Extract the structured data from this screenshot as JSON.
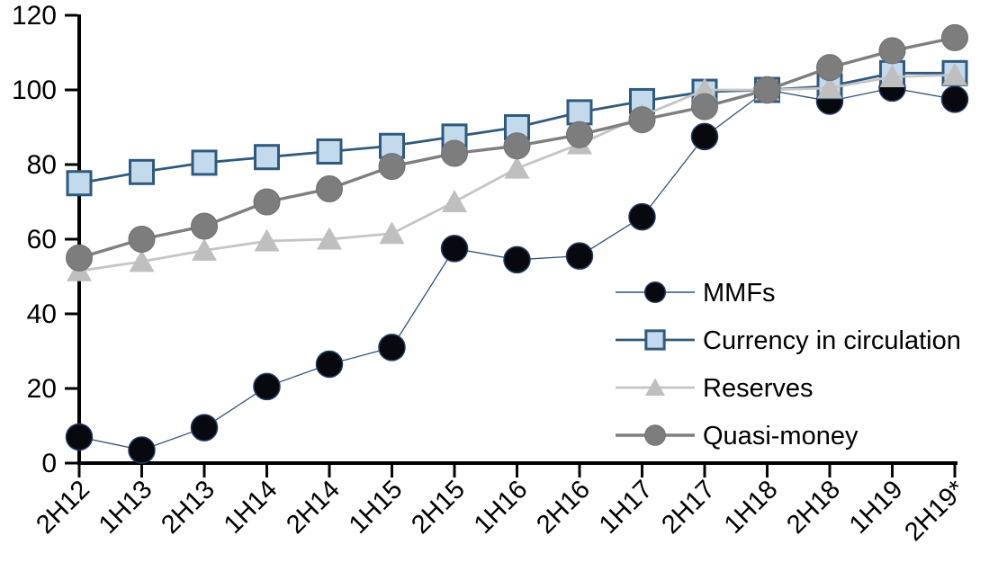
{
  "chart_data": {
    "type": "line",
    "title": "",
    "xlabel": "",
    "ylabel": "",
    "categories": [
      "2H12",
      "1H13",
      "2H13",
      "1H14",
      "2H14",
      "1H15",
      "2H15",
      "1H16",
      "2H16",
      "1H17",
      "2H17",
      "1H18",
      "2H18",
      "1H19",
      "2H19*"
    ],
    "series": [
      {
        "name": "MMFs",
        "marker": "circle",
        "marker_fill": "#07090F",
        "marker_stroke": "#223A62",
        "marker_stroke_width": 1.5,
        "marker_size": 29,
        "line_color": "#32527B",
        "line_width": 1.3,
        "values": [
          7,
          3.5,
          9.5,
          20.5,
          26.5,
          31,
          57.5,
          54.5,
          55.5,
          66,
          87.5,
          100,
          97,
          100.5,
          97.5
        ]
      },
      {
        "name": "Currency in circulation",
        "marker": "square",
        "marker_fill": "#C3D9EC",
        "marker_stroke": "#2F5A7E",
        "marker_stroke_width": 3,
        "marker_size": 26,
        "line_color": "#2F5A7E",
        "line_width": 2.8,
        "values": [
          75,
          78,
          80.5,
          82,
          83.5,
          85,
          87.5,
          90,
          94,
          97,
          99.5,
          100,
          101,
          104.5,
          104.5
        ]
      },
      {
        "name": "Reserves",
        "marker": "triangle",
        "marker_fill": "#BFBFBF",
        "marker_stroke": "#BFBFBF",
        "marker_stroke_width": 0,
        "marker_size": 28,
        "line_color": "#C5C5C5",
        "line_width": 2.8,
        "values": [
          51.5,
          54,
          57,
          59.5,
          60,
          61.5,
          70,
          79,
          85.5,
          93,
          100,
          100,
          100.5,
          103.5,
          104
        ]
      },
      {
        "name": "Quasi-money",
        "marker": "circle",
        "marker_fill": "#7D7D7D",
        "marker_stroke": "#707070",
        "marker_stroke_width": 1,
        "marker_size": 29,
        "line_color": "#7F7F7F",
        "line_width": 3.4,
        "values": [
          55,
          60,
          63.5,
          70,
          73.5,
          79.5,
          83,
          85,
          88,
          92,
          95.5,
          100,
          106,
          110.5,
          114
        ]
      }
    ],
    "ylim": [
      0,
      120
    ],
    "yticks": [
      0,
      20,
      40,
      60,
      80,
      100,
      120
    ],
    "x_tick_rotation": -45,
    "grid": false,
    "background_color": "#FFFFFF",
    "axis_color": "#000000",
    "legend_position": "inside-middle-right",
    "legend_entries": [
      "MMFs",
      "Currency in circulation",
      "Reserves",
      "Quasi-money"
    ]
  }
}
